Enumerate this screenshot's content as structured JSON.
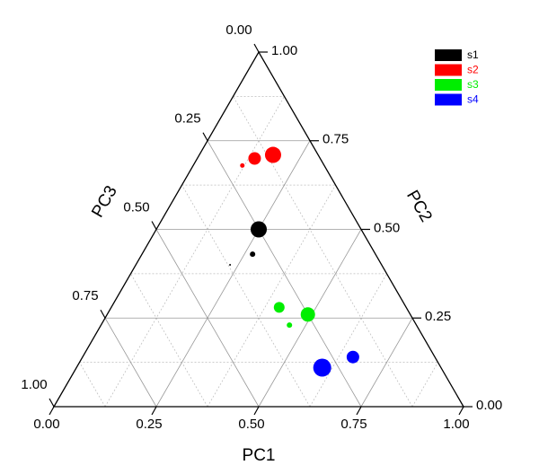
{
  "chart_data": {
    "type": "ternary",
    "axes": {
      "a": {
        "title": "PC1",
        "ticks": [
          {
            "value": 0,
            "label": "0.00"
          },
          {
            "value": 0.25,
            "label": "0.25"
          },
          {
            "value": 0.5,
            "label": "0.50"
          },
          {
            "value": 0.75,
            "label": "0.75"
          },
          {
            "value": 1,
            "label": "1.00"
          }
        ]
      },
      "b": {
        "title": "PC2",
        "ticks": [
          {
            "value": 0,
            "label": "0.00"
          },
          {
            "value": 0.25,
            "label": "0.25"
          },
          {
            "value": 0.5,
            "label": "0.50"
          },
          {
            "value": 0.75,
            "label": "0.75"
          },
          {
            "value": 1,
            "label": "1.00"
          }
        ]
      },
      "c": {
        "title": "PC3",
        "ticks": [
          {
            "value": 0,
            "label": "0.00"
          },
          {
            "value": 0.25,
            "label": "0.25"
          },
          {
            "value": 0.5,
            "label": "0.50"
          },
          {
            "value": 0.75,
            "label": "0.75"
          },
          {
            "value": 1,
            "label": "1.00"
          }
        ]
      }
    },
    "minor_grid": [
      0.125,
      0.375,
      0.625,
      0.875
    ],
    "grid": true,
    "legend": "top-right",
    "series": [
      {
        "name": "s1",
        "color": "#000000",
        "a": [
          0.25,
          0.27,
          0.23
        ],
        "b": [
          0.5,
          0.43,
          0.4
        ],
        "c": [
          0.25,
          0.3,
          0.37
        ],
        "sizes": [
          9,
          3,
          1
        ]
      },
      {
        "name": "s2",
        "color": "#ff0000",
        "a": [
          0.18,
          0.14,
          0.12
        ],
        "b": [
          0.71,
          0.7,
          0.68
        ],
        "c": [
          0.11,
          0.16,
          0.2
        ],
        "sizes": [
          9,
          7,
          2.5
        ]
      },
      {
        "name": "s3",
        "color": "#00ee00",
        "a": [
          0.49,
          0.41,
          0.46
        ],
        "b": [
          0.26,
          0.28,
          0.23
        ],
        "c": [
          0.25,
          0.31,
          0.31
        ],
        "sizes": [
          8,
          6,
          3
        ]
      },
      {
        "name": "s4",
        "color": "#0000ff",
        "a": [
          0.6,
          0.66
        ],
        "b": [
          0.11,
          0.14
        ],
        "c": [
          0.29,
          0.2
        ],
        "sizes": [
          10,
          7
        ]
      }
    ]
  }
}
